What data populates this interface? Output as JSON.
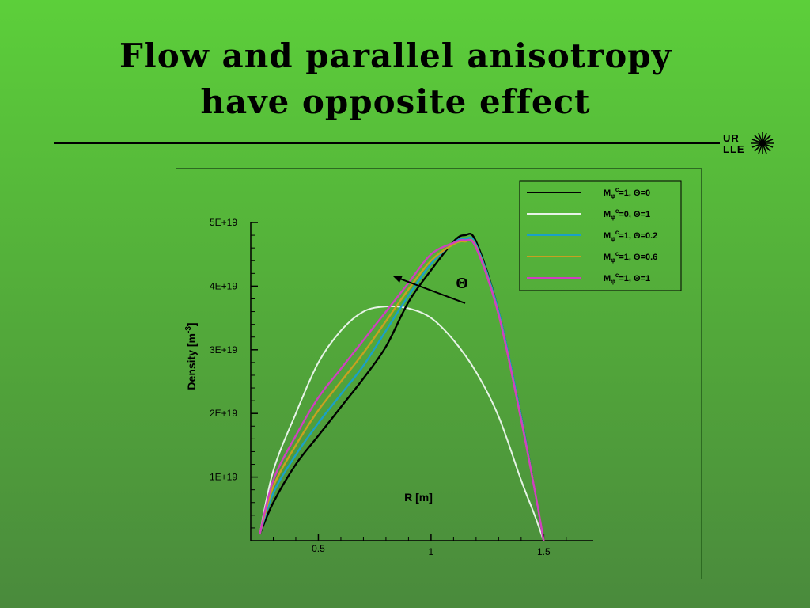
{
  "slide": {
    "title_line1": "Flow and parallel anisotropy",
    "title_line2": "have opposite effect"
  },
  "logo": {
    "line1": "UR",
    "line2": "LLE"
  },
  "annotation": {
    "symbol": "Θ"
  },
  "chart_data": {
    "type": "line",
    "xlabel": "R [m]",
    "ylabel": "Density [m-3]",
    "xlim": [
      0.2,
      1.72
    ],
    "ylim": [
      0,
      5e+19
    ],
    "x_ticks": [
      {
        "value": 0.5,
        "label": "0.5"
      },
      {
        "value": 1,
        "label": "1"
      },
      {
        "value": 1.5,
        "label": "1.5"
      }
    ],
    "y_ticks": [
      {
        "value": 1e+19,
        "label": "1E+19"
      },
      {
        "value": 2e+19,
        "label": "2E+19"
      },
      {
        "value": 3e+19,
        "label": "3E+19"
      },
      {
        "value": 4e+19,
        "label": "4E+19"
      },
      {
        "value": 5e+19,
        "label": "5E+19"
      }
    ],
    "legend_position": "top-right",
    "series": [
      {
        "name": "Mφc=1, Θ=0",
        "color": "#000000",
        "x": [
          0.24,
          0.3,
          0.4,
          0.5,
          0.6,
          0.7,
          0.8,
          0.9,
          1.0,
          1.1,
          1.15,
          1.2,
          1.3,
          1.4,
          1.46,
          1.5
        ],
        "y": [
          1e+18,
          6e+18,
          1.2e+19,
          1.65e+19,
          2.1e+19,
          2.55e+19,
          3.05e+19,
          3.75e+19,
          4.25e+19,
          4.7e+19,
          4.8e+19,
          4.7e+19,
          3.6e+19,
          1.95e+19,
          8e+18,
          0
        ]
      },
      {
        "name": "Mφc=0, Θ=1",
        "color": "#e6f3e6",
        "x": [
          0.24,
          0.3,
          0.4,
          0.5,
          0.6,
          0.7,
          0.8,
          0.9,
          1.0,
          1.1,
          1.2,
          1.3,
          1.4,
          1.46,
          1.5
        ],
        "y": [
          1e+18,
          1.1e+19,
          2e+19,
          2.8e+19,
          3.3e+19,
          3.6e+19,
          3.68e+19,
          3.65e+19,
          3.5e+19,
          3.15e+19,
          2.65e+19,
          1.95e+19,
          9.5e+18,
          4e+18,
          0
        ]
      },
      {
        "name": "Mφc=1, Θ=0.2",
        "color": "#1aa0c8",
        "x": [
          0.24,
          0.3,
          0.4,
          0.5,
          0.6,
          0.7,
          0.8,
          0.9,
          1.0,
          1.1,
          1.15,
          1.2,
          1.3,
          1.4,
          1.46,
          1.5
        ],
        "y": [
          1e+18,
          7.5e+18,
          1.35e+19,
          1.85e+19,
          2.3e+19,
          2.75e+19,
          3.3e+19,
          3.85e+19,
          4.35e+19,
          4.68e+19,
          4.74e+19,
          4.65e+19,
          3.6e+19,
          1.95e+19,
          8e+18,
          0
        ]
      },
      {
        "name": "Mφc=1, Θ=0.6",
        "color": "#c8a020",
        "x": [
          0.24,
          0.3,
          0.4,
          0.5,
          0.6,
          0.7,
          0.8,
          0.9,
          1.0,
          1.1,
          1.15,
          1.2,
          1.3,
          1.4,
          1.46,
          1.5
        ],
        "y": [
          1e+18,
          8.5e+18,
          1.5e+19,
          2.05e+19,
          2.5e+19,
          2.95e+19,
          3.45e+19,
          3.95e+19,
          4.4e+19,
          4.66e+19,
          4.7e+19,
          4.62e+19,
          3.55e+19,
          1.9e+19,
          8e+18,
          0
        ]
      },
      {
        "name": "Mφc=1, Θ=1",
        "color": "#d040c0",
        "x": [
          0.24,
          0.3,
          0.4,
          0.5,
          0.6,
          0.7,
          0.8,
          0.9,
          1.0,
          1.1,
          1.15,
          1.2,
          1.3,
          1.4,
          1.46,
          1.5
        ],
        "y": [
          1e+18,
          9.5e+18,
          1.65e+19,
          2.25e+19,
          2.7e+19,
          3.15e+19,
          3.6e+19,
          4.05e+19,
          4.5e+19,
          4.68e+19,
          4.72e+19,
          4.6e+19,
          3.55e+19,
          1.9e+19,
          8e+18,
          0
        ]
      }
    ],
    "legend": [
      {
        "sub": "φ",
        "sup": "c",
        "rest_a": "=1, ",
        "theta": "Θ",
        "rest_b": "=0"
      },
      {
        "sub": "φ",
        "sup": "c",
        "rest_a": "=0, ",
        "theta": "Θ",
        "rest_b": "=1"
      },
      {
        "sub": "φ",
        "sup": "c",
        "rest_a": "=1, ",
        "theta": "Θ",
        "rest_b": "=0.2"
      },
      {
        "sub": "φ",
        "sup": "c",
        "rest_a": "=1, ",
        "theta": "Θ",
        "rest_b": "=0.6"
      },
      {
        "sub": "φ",
        "sup": "c",
        "rest_a": "=1, ",
        "theta": "Θ",
        "rest_b": "=1"
      }
    ]
  }
}
